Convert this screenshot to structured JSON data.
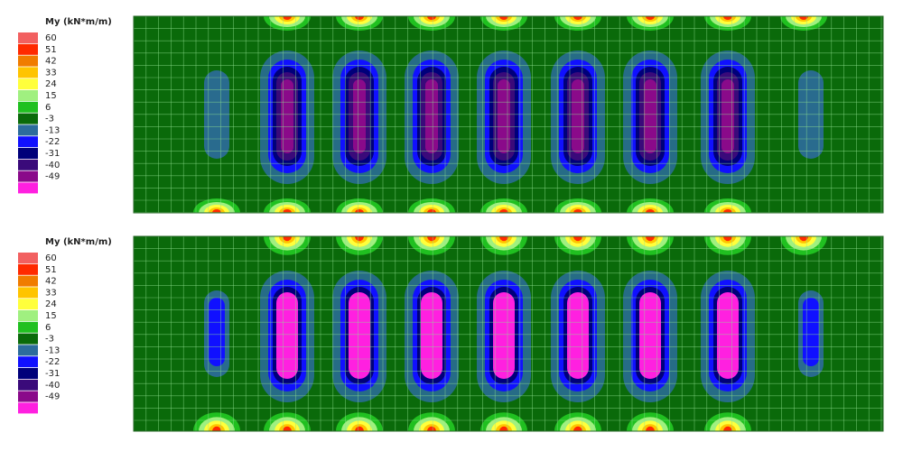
{
  "panels": [
    {
      "legend": {
        "title": "My (kN*m/m)",
        "labels": [
          "60",
          "51",
          "42",
          "33",
          "24",
          "15",
          "6",
          "-3",
          "-13",
          "-22",
          "-31",
          "-40",
          "-49"
        ],
        "colors": [
          "#f26060",
          "#ff2a00",
          "#f07c00",
          "#ffc400",
          "#ffff3c",
          "#a0f080",
          "#20c020",
          "#0a6a0a",
          "#2c6c9c",
          "#1010ff",
          "#00007a",
          "#3a0a7a",
          "#8a0a8a",
          "#ff20e0"
        ]
      }
    },
    {
      "legend": {
        "title": "My (kN*m/m)",
        "labels": [
          "60",
          "51",
          "42",
          "33",
          "24",
          "15",
          "6",
          "-3",
          "-13",
          "-22",
          "-31",
          "-40",
          "-49"
        ],
        "colors": [
          "#f26060",
          "#ff2a00",
          "#f07c00",
          "#ffc400",
          "#ffff3c",
          "#a0f080",
          "#20c020",
          "#0a6a0a",
          "#2c6c9c",
          "#1010ff",
          "#00007a",
          "#3a0a7a",
          "#8a0a8a",
          "#ff20e0"
        ]
      }
    }
  ]
}
